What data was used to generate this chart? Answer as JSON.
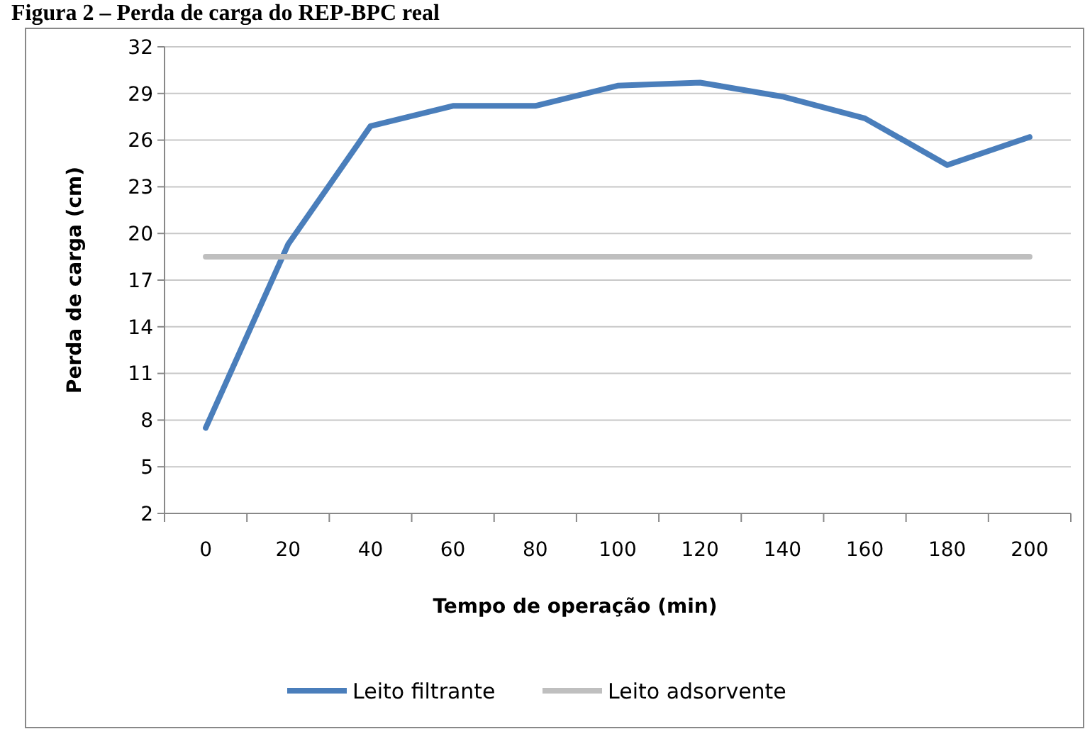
{
  "chart_data": {
    "type": "line",
    "title": "Figura 2 – Perda de carga do REP-BPC real",
    "xlabel": "Tempo de operação  (min)",
    "ylabel": "Perda de carga  (cm)",
    "categories": [
      "0",
      "20",
      "40",
      "60",
      "80",
      "100",
      "120",
      "140",
      "160",
      "180",
      "200"
    ],
    "series": [
      {
        "name": "Leito filtrante",
        "color": "#4a7ebb",
        "values": [
          7.5,
          19.3,
          26.9,
          28.2,
          28.2,
          29.5,
          29.7,
          28.8,
          27.4,
          24.4,
          26.2
        ]
      },
      {
        "name": "Leito adsorvente",
        "color": "#bfbfbf",
        "values": [
          18.5,
          18.5,
          18.5,
          18.5,
          18.5,
          18.5,
          18.5,
          18.5,
          18.5,
          18.5,
          18.5
        ]
      }
    ],
    "ylim": [
      2,
      32
    ],
    "yticks": [
      2,
      5,
      8,
      11,
      14,
      17,
      20,
      23,
      26,
      29,
      32
    ],
    "grid": "y",
    "legend": "bottom",
    "marker": "none",
    "line_style": "solid"
  }
}
